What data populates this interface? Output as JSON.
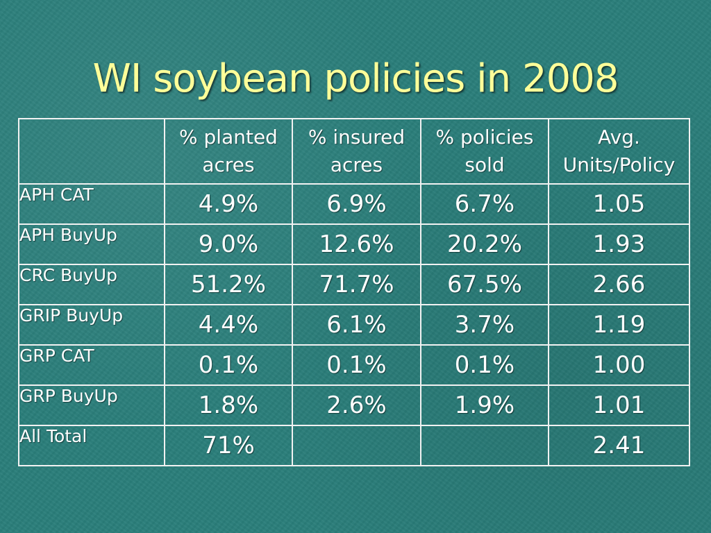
{
  "slide": {
    "title": "WI soybean policies in 2008"
  },
  "table": {
    "headers": [
      "",
      "% planted acres",
      "% insured acres",
      "% policies sold",
      "Avg. Units/Policy"
    ],
    "rows": [
      {
        "label": "APH CAT",
        "cells": [
          "4.9%",
          "6.9%",
          "6.7%",
          "1.05"
        ]
      },
      {
        "label": "APH BuyUp",
        "cells": [
          "9.0%",
          "12.6%",
          "20.2%",
          "1.93"
        ]
      },
      {
        "label": "CRC BuyUp",
        "cells": [
          "51.2%",
          "71.7%",
          "67.5%",
          "2.66"
        ]
      },
      {
        "label": "GRIP BuyUp",
        "cells": [
          "4.4%",
          "6.1%",
          "3.7%",
          "1.19"
        ]
      },
      {
        "label": "GRP CAT",
        "cells": [
          "0.1%",
          "0.1%",
          "0.1%",
          "1.00"
        ]
      },
      {
        "label": "GRP BuyUp",
        "cells": [
          "1.8%",
          "2.6%",
          "1.9%",
          "1.01"
        ]
      },
      {
        "label": "All Total",
        "cells": [
          "71%",
          "",
          "",
          "2.41"
        ]
      }
    ]
  },
  "colors": {
    "background": "#2a7e7a",
    "title": "#ffff99",
    "text": "#ffffff",
    "grid": "#f2f2f2"
  }
}
